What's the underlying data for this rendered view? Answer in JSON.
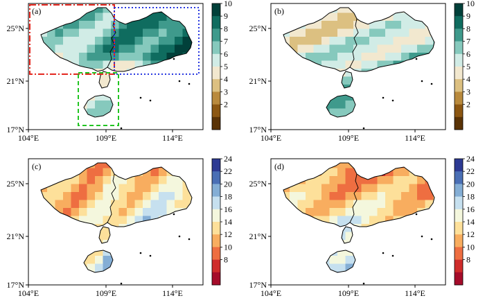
{
  "panels": [
    {
      "id": "a",
      "label": "(a)",
      "y_ticks": [
        "25°N",
        "21°N",
        "17°N"
      ],
      "x_ticks": [
        "104°E",
        "109°E",
        "114°E"
      ],
      "colorbar": {
        "ticks": [
          "10",
          "9",
          "8",
          "7",
          "6",
          "5",
          "4",
          "3",
          "2"
        ],
        "colors": [
          "#01403a",
          "#0f6c5f",
          "#3f9a8c",
          "#86c9bd",
          "#d1ece6",
          "#f2e8cf",
          "#dcc081",
          "#b98a3d",
          "#8c5712",
          "#5a3306"
        ]
      },
      "boxes": [
        {
          "name": "red-box",
          "color": "#e3261e",
          "style": "dashdot"
        },
        {
          "name": "blue-box",
          "color": "#2636e0",
          "style": "dotted"
        },
        {
          "name": "green-box",
          "color": "#22c422",
          "style": "dashed"
        }
      ]
    },
    {
      "id": "b",
      "label": "(b)",
      "y_ticks": [
        "25°N",
        "21°N",
        "17°N"
      ],
      "x_ticks": [
        "104°E",
        "109°E",
        "114°E"
      ],
      "colorbar": {
        "ticks": [
          "10",
          "9",
          "8",
          "7",
          "6",
          "5",
          "4",
          "3",
          "2"
        ],
        "colors": [
          "#01403a",
          "#0f6c5f",
          "#3f9a8c",
          "#86c9bd",
          "#d1ece6",
          "#f2e8cf",
          "#dcc081",
          "#b98a3d",
          "#8c5712",
          "#5a3306"
        ]
      }
    },
    {
      "id": "c",
      "label": "(c)",
      "y_ticks": [
        "25°N",
        "21°N",
        "17°N"
      ],
      "x_ticks": [
        "104°E",
        "109°E",
        "114°E"
      ],
      "colorbar": {
        "ticks": [
          "24",
          "22",
          "20",
          "18",
          "16",
          "14",
          "12",
          "10",
          "8"
        ],
        "colors": [
          "#2d3a93",
          "#4a6fb5",
          "#84aed5",
          "#c6e0ef",
          "#f4f7dd",
          "#fde09a",
          "#f8ad5f",
          "#ee6e41",
          "#cf2c2b",
          "#a50c2a"
        ]
      }
    },
    {
      "id": "d",
      "label": "(d)",
      "y_ticks": [
        "25°N",
        "21°N",
        "17°N"
      ],
      "x_ticks": [
        "104°E",
        "109°E",
        "114°E"
      ],
      "colorbar": {
        "ticks": [
          "24",
          "22",
          "20",
          "18",
          "16",
          "14",
          "12",
          "10",
          "8"
        ],
        "colors": [
          "#2d3a93",
          "#4a6fb5",
          "#84aed5",
          "#c6e0ef",
          "#f4f7dd",
          "#fde09a",
          "#f8ad5f",
          "#ee6e41",
          "#cf2c2b",
          "#a50c2a"
        ]
      }
    }
  ]
}
